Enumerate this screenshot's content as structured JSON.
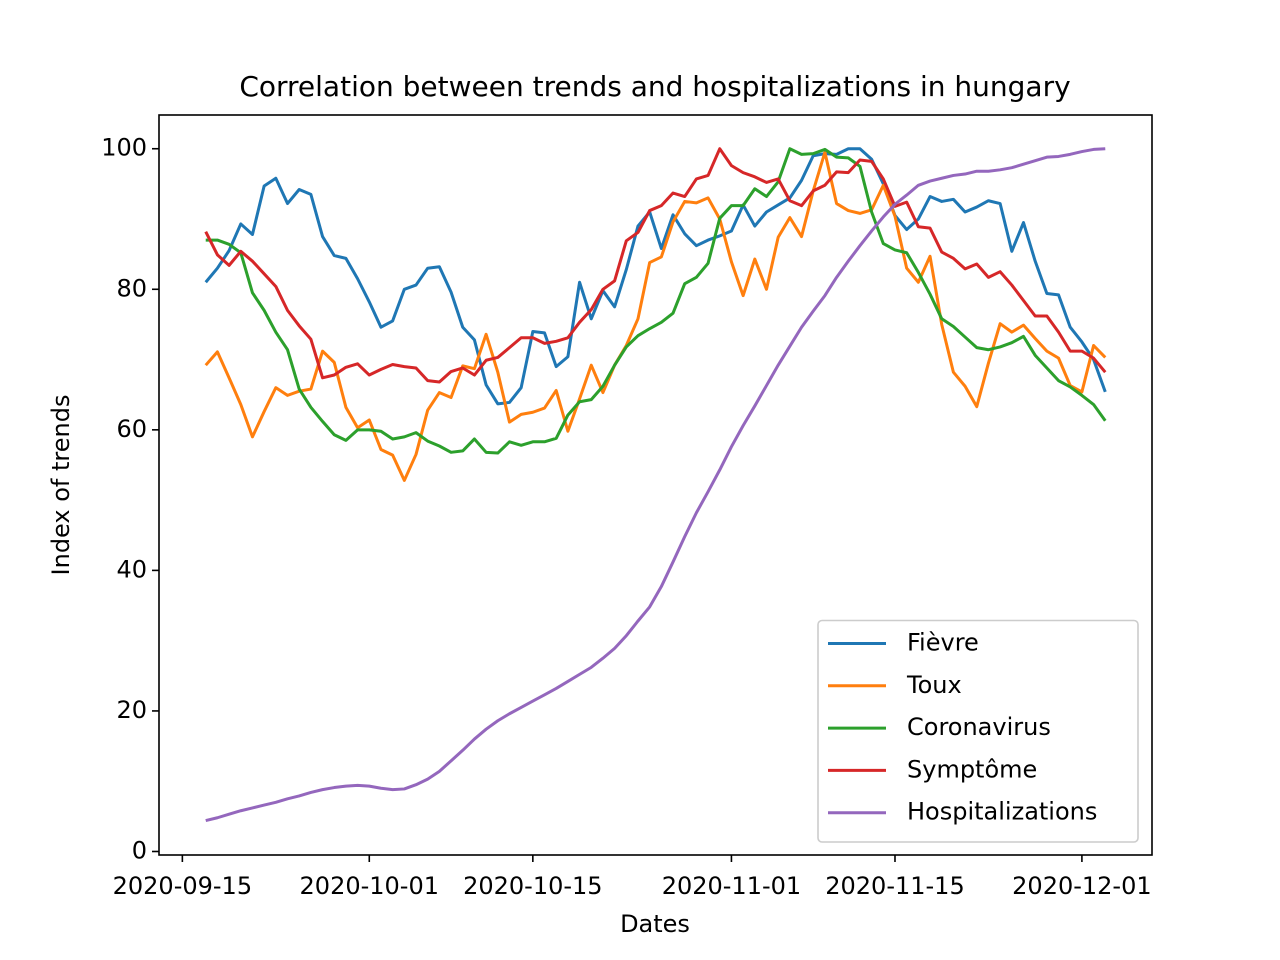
{
  "chart_data": {
    "type": "line",
    "title": "Correlation between trends and hospitalizations in hungary",
    "xlabel": "Dates",
    "ylabel": "Index of trends",
    "x": [
      "2020-09-17",
      "2020-09-18",
      "2020-09-19",
      "2020-09-20",
      "2020-09-21",
      "2020-09-22",
      "2020-09-23",
      "2020-09-24",
      "2020-09-25",
      "2020-09-26",
      "2020-09-27",
      "2020-09-28",
      "2020-09-29",
      "2020-09-30",
      "2020-10-01",
      "2020-10-02",
      "2020-10-03",
      "2020-10-04",
      "2020-10-05",
      "2020-10-06",
      "2020-10-07",
      "2020-10-08",
      "2020-10-09",
      "2020-10-10",
      "2020-10-11",
      "2020-10-12",
      "2020-10-13",
      "2020-10-14",
      "2020-10-15",
      "2020-10-16",
      "2020-10-17",
      "2020-10-18",
      "2020-10-19",
      "2020-10-20",
      "2020-10-21",
      "2020-10-22",
      "2020-10-23",
      "2020-10-24",
      "2020-10-25",
      "2020-10-26",
      "2020-10-27",
      "2020-10-28",
      "2020-10-29",
      "2020-10-30",
      "2020-10-31",
      "2020-11-01",
      "2020-11-02",
      "2020-11-03",
      "2020-11-04",
      "2020-11-05",
      "2020-11-06",
      "2020-11-07",
      "2020-11-08",
      "2020-11-09",
      "2020-11-10",
      "2020-11-11",
      "2020-11-12",
      "2020-11-13",
      "2020-11-14",
      "2020-11-15",
      "2020-11-16",
      "2020-11-17",
      "2020-11-18",
      "2020-11-19",
      "2020-11-20",
      "2020-11-21",
      "2020-11-22",
      "2020-11-23",
      "2020-11-24",
      "2020-11-25",
      "2020-11-26",
      "2020-11-27",
      "2020-11-28",
      "2020-11-29",
      "2020-11-30",
      "2020-12-01",
      "2020-12-02",
      "2020-12-03"
    ],
    "series": [
      {
        "name": "Fièvre",
        "color": "#1f77b4",
        "values": [
          81,
          83,
          85.5,
          89.3,
          87.8,
          94.7,
          95.8,
          92.2,
          94.2,
          93.5,
          87.5,
          84.8,
          84.4,
          81.5,
          78.2,
          74.6,
          75.5,
          80,
          80.6,
          83,
          83.2,
          79.6,
          74.6,
          72.8,
          66.4,
          63.7,
          63.9,
          66,
          74,
          73.8,
          69,
          70.4,
          81,
          75.8,
          79.8,
          77.5,
          82.8,
          89,
          91,
          85.8,
          90.6,
          87.9,
          86.2,
          87,
          87.6,
          88.3,
          92,
          89,
          91,
          92,
          93,
          95.5,
          99,
          99.3,
          99.2,
          100,
          100,
          98.5,
          95,
          90.5,
          88.5,
          90,
          93.2,
          92.5,
          92.8,
          91,
          91.7,
          92.6,
          92.2,
          85.4,
          89.5,
          84,
          79.4,
          79.2,
          74.6,
          72.5,
          70,
          65.4
        ]
      },
      {
        "name": "Toux",
        "color": "#ff7f0e",
        "values": [
          69.2,
          71.1,
          67.4,
          63.6,
          59,
          62.6,
          66,
          64.9,
          65.5,
          65.8,
          71.2,
          69.6,
          63.2,
          60.3,
          61.4,
          57.2,
          56.4,
          52.8,
          56.5,
          62.8,
          65.3,
          64.6,
          69.1,
          68.7,
          73.6,
          68.2,
          61.1,
          62.2,
          62.5,
          63.1,
          65.6,
          59.8,
          64.4,
          69.2,
          65.3,
          69.2,
          72,
          75.8,
          83.8,
          84.6,
          89.6,
          92.5,
          92.3,
          93,
          90,
          83.9,
          79.1,
          84.3,
          80,
          87.4,
          90.2,
          87.5,
          94,
          99.5,
          92.2,
          91.2,
          90.8,
          91.3,
          94.8,
          90.4,
          83,
          81,
          84.7,
          75,
          68.2,
          66.2,
          63.3,
          69.5,
          75.1,
          73.9,
          74.9,
          73,
          71.2,
          70.2,
          66.3,
          65.4,
          72,
          70.3
        ]
      },
      {
        "name": "Coronavirus",
        "color": "#2ca02c",
        "values": [
          87,
          87,
          86.4,
          85.2,
          79.5,
          77,
          73.9,
          71.4,
          65.8,
          63.2,
          61.2,
          59.3,
          58.5,
          60,
          60,
          59.8,
          58.7,
          59,
          59.6,
          58.4,
          57.7,
          56.8,
          57,
          58.7,
          56.8,
          56.7,
          58.3,
          57.8,
          58.3,
          58.3,
          58.8,
          62.1,
          64,
          64.3,
          66.2,
          69.2,
          71.8,
          73.4,
          74.4,
          75.3,
          76.6,
          80.8,
          81.7,
          83.7,
          90.1,
          91.9,
          91.9,
          94.3,
          93.2,
          95.3,
          100,
          99.2,
          99.3,
          99.9,
          98.8,
          98.7,
          97.5,
          91,
          86.5,
          85.6,
          85.2,
          82.4,
          79.3,
          75.8,
          74.7,
          73.2,
          71.7,
          71.4,
          71.8,
          72.4,
          73.3,
          70.6,
          68.8,
          67,
          66.1,
          64.9,
          63.6,
          61.3
        ]
      },
      {
        "name": "Symptôme",
        "color": "#d62728",
        "values": [
          88.2,
          84.9,
          83.4,
          85.4,
          84,
          82.2,
          80.4,
          77,
          74.8,
          72.9,
          67.4,
          67.8,
          68.9,
          69.4,
          67.8,
          68.6,
          69.3,
          69,
          68.8,
          67,
          66.8,
          68.3,
          68.8,
          67.8,
          69.9,
          70.3,
          71.7,
          73.1,
          73.1,
          72.3,
          72.6,
          73.1,
          75.3,
          77.1,
          80,
          81.2,
          86.9,
          88.1,
          91.2,
          91.9,
          93.7,
          93.2,
          95.7,
          96.2,
          100,
          97.6,
          96.6,
          96,
          95.2,
          95.7,
          92.6,
          91.9,
          94,
          94.8,
          96.7,
          96.6,
          98.4,
          98.2,
          95.7,
          91.8,
          92.4,
          88.9,
          88.7,
          85.3,
          84.4,
          82.9,
          83.6,
          81.7,
          82.5,
          80.6,
          78.4,
          76.2,
          76.2,
          73.9,
          71.2,
          71.2,
          70.2,
          68.2
        ]
      },
      {
        "name": "Hospitalizations",
        "color": "#9467bd",
        "values": [
          4.4,
          4.8,
          5.3,
          5.8,
          6.2,
          6.6,
          7,
          7.5,
          7.9,
          8.4,
          8.8,
          9.1,
          9.3,
          9.4,
          9.3,
          9,
          8.8,
          8.9,
          9.5,
          10.3,
          11.4,
          12.9,
          14.4,
          16,
          17.4,
          18.6,
          19.6,
          20.5,
          21.4,
          22.3,
          23.2,
          24.2,
          25.2,
          26.2,
          27.5,
          28.9,
          30.7,
          32.8,
          34.8,
          37.7,
          41.2,
          44.8,
          48.2,
          51.2,
          54.3,
          57.6,
          60.6,
          63.4,
          66.3,
          69.2,
          71.9,
          74.6,
          76.9,
          79.1,
          81.7,
          84,
          86.2,
          88.3,
          90.3,
          92.1,
          93.4,
          94.8,
          95.4,
          95.8,
          96.2,
          96.4,
          96.8,
          96.8,
          97,
          97.3,
          97.8,
          98.3,
          98.8,
          98.9,
          99.2,
          99.6,
          99.9,
          100
        ]
      }
    ],
    "xlim": [
      "2020-09-13",
      "2020-12-07"
    ],
    "xticks": [
      "2020-09-15",
      "2020-10-01",
      "2020-10-15",
      "2020-11-01",
      "2020-11-15",
      "2020-12-01"
    ],
    "ylim": [
      -0.5,
      104.8
    ],
    "yticks": [
      0,
      20,
      40,
      60,
      80,
      100
    ],
    "legend": "lower right"
  }
}
